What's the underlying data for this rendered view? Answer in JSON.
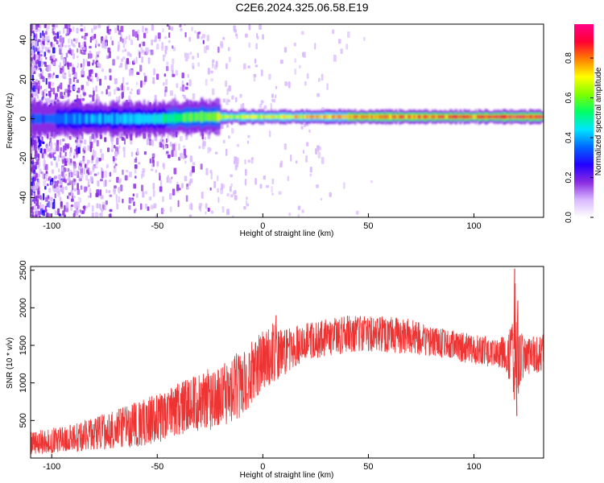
{
  "title": "C2E6.2024.325.06.58.E19",
  "chart_data": [
    {
      "type": "heatmap",
      "xlabel": "Height of straight line (km)",
      "ylabel": "Frequency (Hz)",
      "xlim": [
        -110,
        133
      ],
      "ylim": [
        -50,
        48
      ],
      "xticks": [
        "-100",
        "-50",
        "0",
        "50",
        "100"
      ],
      "yticks": [
        "-40",
        "-20",
        "0",
        "20",
        "40"
      ],
      "grid": false,
      "colorbar": {
        "label": "Normalized spectral amplitude",
        "range": [
          0,
          0.97
        ],
        "ticks": [
          "0.0",
          "0.2",
          "0.4",
          "0.6",
          "0.8"
        ],
        "colormap": [
          "#ffffff",
          "#d8b8ff",
          "#8a2be2",
          "#2200ff",
          "#0066ff",
          "#00e5ff",
          "#00ff66",
          "#7fff00",
          "#ffff00",
          "#ff8000",
          "#ff0033",
          "#ff0088"
        ]
      },
      "ridge": {
        "x": [
          -110,
          -90,
          -70,
          -50,
          -30,
          -15,
          0,
          20,
          50,
          80,
          100,
          133
        ],
        "frequency": [
          0,
          0,
          0,
          0,
          1,
          1,
          1,
          1,
          1,
          1,
          1,
          1
        ],
        "amplitude": [
          0.35,
          0.4,
          0.45,
          0.5,
          0.65,
          0.7,
          0.75,
          0.8,
          0.85,
          0.9,
          0.9,
          0.95
        ]
      }
    },
    {
      "type": "line",
      "xlabel": "Height of straight line (km)",
      "ylabel": "SNR (10 * v/v)",
      "xlim": [
        -110,
        133
      ],
      "ylim": [
        0,
        2550
      ],
      "xticks": [
        "-100",
        "-50",
        "0",
        "50",
        "100"
      ],
      "yticks": [
        "500",
        "1000",
        "1500",
        "2000",
        "2500"
      ],
      "grid": false,
      "line_color": "#ee3333",
      "envelope": {
        "x": [
          -110,
          -100,
          -90,
          -80,
          -70,
          -60,
          -50,
          -40,
          -30,
          -20,
          -10,
          0,
          5,
          10,
          20,
          30,
          40,
          50,
          60,
          70,
          80,
          90,
          100,
          110,
          115,
          118,
          120,
          122,
          125,
          133
        ],
        "low": [
          50,
          60,
          80,
          100,
          120,
          150,
          200,
          300,
          350,
          400,
          550,
          900,
          1000,
          1100,
          1300,
          1350,
          1400,
          1420,
          1400,
          1380,
          1350,
          1300,
          1250,
          1200,
          1150,
          900,
          600,
          1000,
          1100,
          1150
        ],
        "high": [
          350,
          400,
          450,
          550,
          650,
          750,
          850,
          1000,
          1150,
          1250,
          1450,
          1700,
          1800,
          1700,
          1800,
          1850,
          1900,
          1900,
          1880,
          1850,
          1750,
          1700,
          1650,
          1600,
          1650,
          1800,
          2500,
          1700,
          1600,
          1650
        ]
      },
      "spikes": [
        {
          "x": 6,
          "y": 1900
        },
        {
          "x": 119,
          "y": 2520
        },
        {
          "x": 120,
          "y": 560
        }
      ]
    }
  ]
}
